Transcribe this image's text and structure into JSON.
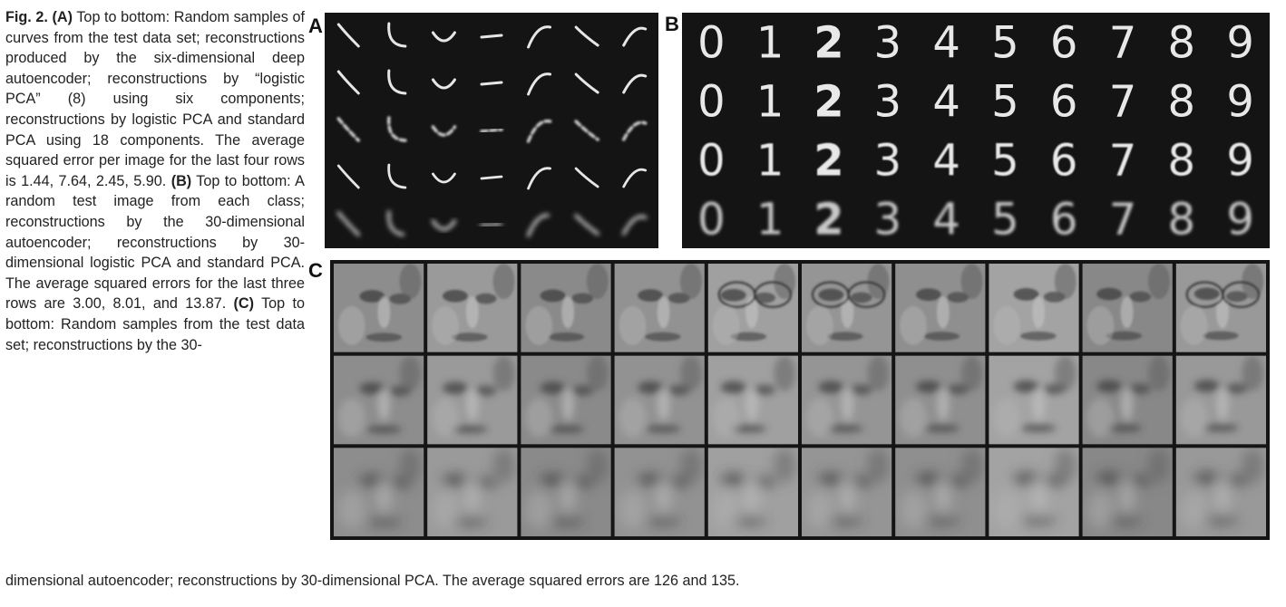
{
  "caption": {
    "fig_label": "Fig. 2.",
    "a_label": "(A)",
    "a_text": " Top to bottom: Random samples of curves from the test data set; reconstructions produced by the six-dimensional deep autoencoder; reconstructions by “logistic PCA” (8) using six components; reconstructions by logistic PCA and standard PCA using 18 components. The average squared error per image for the last four rows is 1.44, 7.64, 2.45, 5.90. ",
    "b_label": "(B)",
    "b_text": " Top to bottom: A random test image from each class; reconstructions by the 30-dimensional autoencoder; reconstructions by 30-dimensional logistic PCA and standard PCA. The average squared errors for the last three rows are 3.00, 8.01, and 13.87. ",
    "c_label": "(C)",
    "c_text": " Top to bottom: Random samples from the test data set; reconstructions by the 30-",
    "tail": "dimensional autoencoder; reconstructions by 30-dimensional PCA. The average squared errors are 126 and 135."
  },
  "panels": {
    "a": {
      "label": "A"
    },
    "b": {
      "label": "B",
      "digits": [
        "0",
        "1",
        "2",
        "3",
        "4",
        "5",
        "6",
        "7",
        "8",
        "9"
      ]
    },
    "c": {
      "label": "C"
    }
  }
}
